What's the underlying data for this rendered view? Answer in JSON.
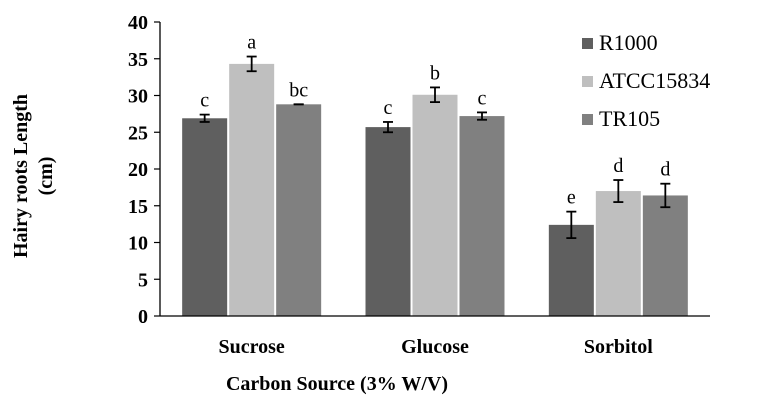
{
  "chart_data": {
    "type": "bar",
    "title": "",
    "xlabel": "Carbon Source (3% W/V)",
    "ylabel_line1": "Hairy roots Length",
    "ylabel_line2": "(cm)",
    "categories": [
      "Sucrose",
      "Glucose",
      "Sorbitol"
    ],
    "ylim": [
      0,
      40
    ],
    "yticks": [
      0,
      5,
      10,
      15,
      20,
      25,
      30,
      35,
      40
    ],
    "grid": false,
    "legend_position": "top-right",
    "colors": {
      "R1000": "#5f5f5f",
      "ATCC15834": "#bfbfbf",
      "TR105": "#808080",
      "axis": "#000000",
      "error_bar": "#000000"
    },
    "series": [
      {
        "name": "R1000",
        "values": [
          26.9,
          25.7,
          12.4
        ],
        "errors": [
          0.5,
          0.7,
          1.8
        ],
        "letters": [
          "c",
          "c",
          "e"
        ]
      },
      {
        "name": "ATCC15834",
        "values": [
          34.3,
          30.1,
          17.0
        ],
        "errors": [
          1.0,
          1.0,
          1.5
        ],
        "letters": [
          "a",
          "b",
          "d"
        ]
      },
      {
        "name": "TR105",
        "values": [
          28.8,
          27.2,
          16.4
        ],
        "errors": [
          0,
          0.5,
          1.6
        ],
        "letters": [
          "bc",
          "c",
          "d"
        ]
      }
    ]
  }
}
